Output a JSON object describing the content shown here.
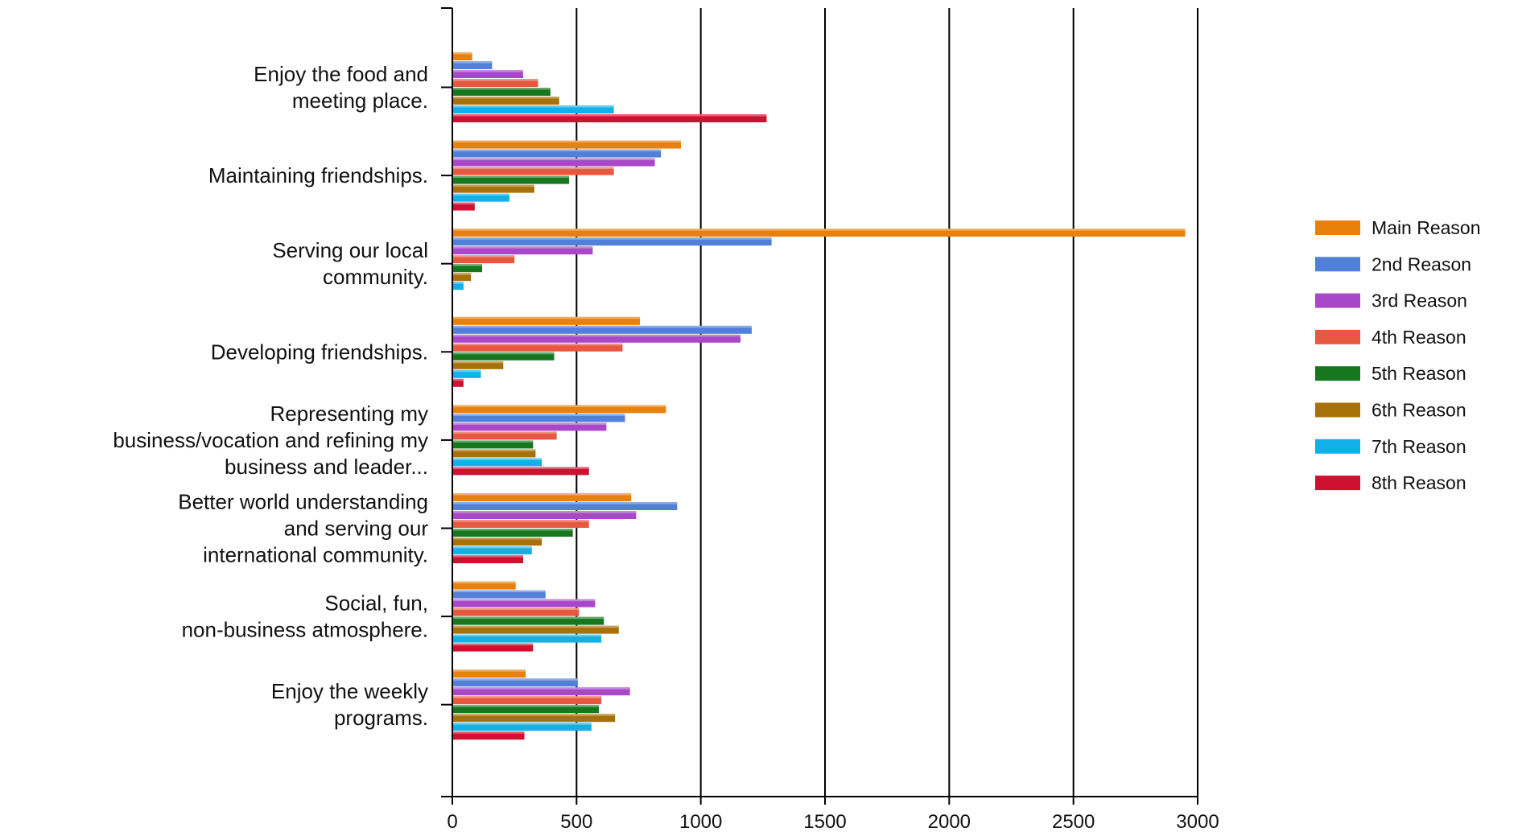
{
  "chart_data": {
    "type": "bar",
    "orientation": "horizontal",
    "title": "",
    "xlabel": "",
    "ylabel": "",
    "xlim": [
      0,
      3000
    ],
    "x_ticks": [
      0,
      500,
      1000,
      1500,
      2000,
      2500,
      3000
    ],
    "grid": "vertical major lines",
    "legend_position": "right",
    "categories": [
      [
        "Enjoy the food and",
        "meeting place."
      ],
      [
        "Maintaining friendships."
      ],
      [
        "Serving our local",
        "community."
      ],
      [
        "Developing friendships."
      ],
      [
        "Representing my",
        "business/vocation and refining my",
        "business and leader..."
      ],
      [
        "Better world understanding",
        "and serving our",
        "international community."
      ],
      [
        "Social, fun,",
        "non-business atmosphere."
      ],
      [
        "Enjoy the weekly",
        "programs."
      ]
    ],
    "series": [
      {
        "name": "Main Reason",
        "color": "#E8800C",
        "values": [
          80,
          920,
          2950,
          755,
          860,
          720,
          255,
          295
        ]
      },
      {
        "name": "2nd Reason",
        "color": "#5080D8",
        "values": [
          160,
          840,
          1285,
          1205,
          695,
          905,
          375,
          505
        ]
      },
      {
        "name": "3rd Reason",
        "color": "#A848C8",
        "values": [
          285,
          815,
          565,
          1160,
          620,
          740,
          575,
          715
        ]
      },
      {
        "name": "4th Reason",
        "color": "#E85840",
        "values": [
          345,
          650,
          250,
          685,
          420,
          550,
          510,
          600
        ]
      },
      {
        "name": "5th Reason",
        "color": "#17771F",
        "values": [
          395,
          470,
          120,
          410,
          325,
          485,
          610,
          590
        ]
      },
      {
        "name": "6th Reason",
        "color": "#A87008",
        "values": [
          430,
          330,
          75,
          205,
          335,
          360,
          670,
          655
        ]
      },
      {
        "name": "7th Reason",
        "color": "#10B0E8",
        "values": [
          650,
          230,
          45,
          115,
          360,
          320,
          600,
          560
        ]
      },
      {
        "name": "8th Reason",
        "color": "#D01030",
        "values": [
          1265,
          90,
          0,
          45,
          550,
          285,
          325,
          290
        ]
      }
    ]
  }
}
